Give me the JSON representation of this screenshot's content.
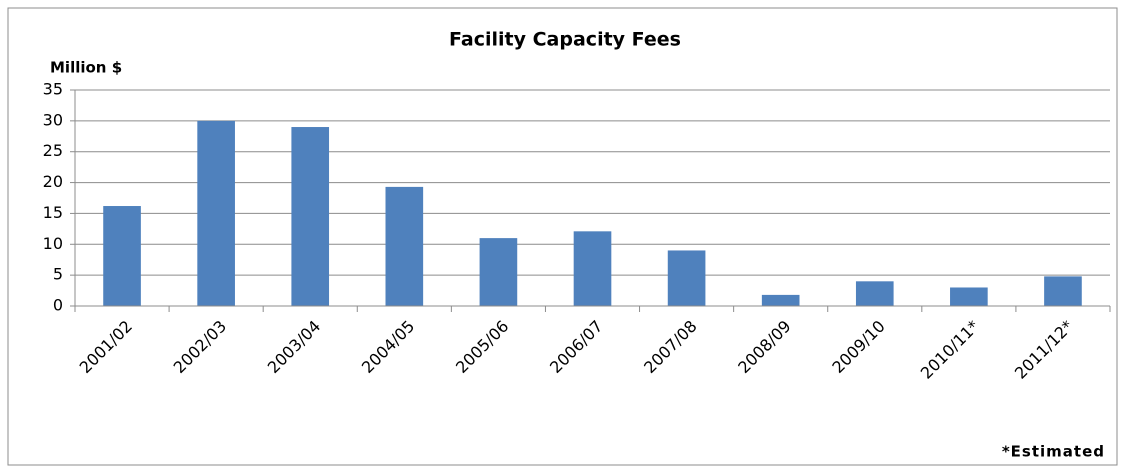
{
  "chart_data": {
    "type": "bar",
    "title": "Facility Capacity Fees",
    "ylabel": "Million $",
    "annotation": "*Estimated",
    "categories": [
      "2001/02",
      "2002/03",
      "2003/04",
      "2004/05",
      "2005/06",
      "2006/07",
      "2007/08",
      "2008/09",
      "2009/10",
      "2010/11*",
      "2011/12*"
    ],
    "values": [
      16.2,
      30,
      29,
      19.3,
      11,
      12.1,
      9,
      1.8,
      4,
      3,
      4.8
    ],
    "color": "#4f81bd",
    "ylim": [
      0,
      35
    ],
    "yticks": [
      0,
      5,
      10,
      15,
      20,
      25,
      30,
      35
    ],
    "grid": true
  }
}
